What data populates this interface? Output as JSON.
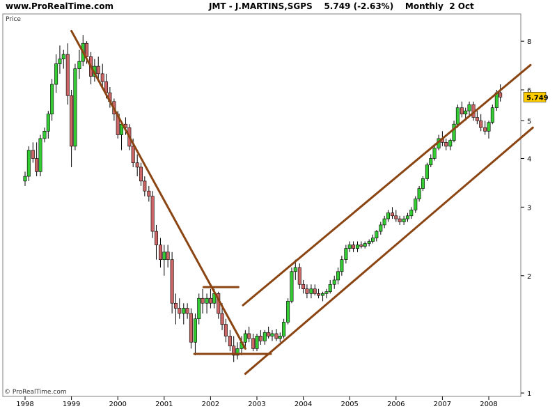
{
  "header": {
    "site": "www.ProRealTime.com",
    "symbol": "JMT - J.MARTINS,SGPS",
    "price": "5.749",
    "change": "(-2.63%)",
    "period": "Monthly",
    "date": "2 Oct"
  },
  "chart_data": {
    "type": "candlestick",
    "ylabel": "Price",
    "y_scale": "log",
    "ylim": [
      0.98,
      9.4
    ],
    "x_range": [
      1997.9,
      2008.95
    ],
    "x_ticks": [
      "1998",
      "1999",
      "2000",
      "2001",
      "2002",
      "2003",
      "2004",
      "2005",
      "2006",
      "2007",
      "2008"
    ],
    "y_ticks": [
      1,
      2,
      3,
      4,
      5,
      6,
      8
    ],
    "last_price_label": "5.749",
    "copyright": "© ProRealTime.com",
    "colors": {
      "up": "#33cc33",
      "down": "#cc6666",
      "trendline": "#8b4513",
      "last_label_bg": "#ffcc00"
    },
    "candles": [
      [
        1998.0,
        3.5,
        3.7,
        3.4,
        3.6
      ],
      [
        1998.08,
        3.6,
        4.3,
        3.5,
        4.2
      ],
      [
        1998.17,
        4.2,
        4.4,
        3.9,
        4.0
      ],
      [
        1998.25,
        4.0,
        4.4,
        3.6,
        3.7
      ],
      [
        1998.33,
        3.7,
        4.6,
        3.6,
        4.5
      ],
      [
        1998.42,
        4.5,
        4.8,
        4.4,
        4.7
      ],
      [
        1998.5,
        4.7,
        5.3,
        4.5,
        5.2
      ],
      [
        1998.58,
        5.2,
        6.4,
        5.0,
        6.2
      ],
      [
        1998.67,
        6.2,
        7.4,
        5.9,
        7.0
      ],
      [
        1998.75,
        7.0,
        7.8,
        6.6,
        7.2
      ],
      [
        1998.83,
        7.2,
        7.6,
        6.8,
        7.4
      ],
      [
        1998.92,
        7.4,
        7.9,
        5.5,
        5.8
      ],
      [
        1999.0,
        5.8,
        6.0,
        3.8,
        4.3
      ],
      [
        1999.08,
        4.3,
        7.0,
        4.2,
        6.8
      ],
      [
        1999.17,
        6.8,
        7.6,
        6.4,
        7.1
      ],
      [
        1999.25,
        7.1,
        8.3,
        6.9,
        7.9
      ],
      [
        1999.33,
        7.9,
        8.0,
        7.0,
        7.3
      ],
      [
        1999.42,
        7.3,
        7.5,
        6.2,
        6.5
      ],
      [
        1999.5,
        6.5,
        7.2,
        6.3,
        6.9
      ],
      [
        1999.58,
        6.9,
        7.3,
        6.4,
        6.6
      ],
      [
        1999.67,
        6.6,
        7.0,
        6.1,
        6.3
      ],
      [
        1999.75,
        6.3,
        6.6,
        5.7,
        5.9
      ],
      [
        1999.83,
        5.9,
        6.1,
        5.4,
        5.6
      ],
      [
        1999.92,
        5.6,
        5.7,
        5.0,
        5.2
      ],
      [
        2000.0,
        5.2,
        5.3,
        4.5,
        4.6
      ],
      [
        2000.08,
        4.6,
        5.0,
        4.2,
        4.9
      ],
      [
        2000.17,
        4.9,
        5.1,
        4.6,
        4.8
      ],
      [
        2000.25,
        4.8,
        4.9,
        4.2,
        4.3
      ],
      [
        2000.33,
        4.3,
        4.5,
        3.8,
        3.9
      ],
      [
        2000.42,
        3.9,
        4.1,
        3.6,
        3.8
      ],
      [
        2000.5,
        3.8,
        3.9,
        3.4,
        3.5
      ],
      [
        2000.58,
        3.5,
        3.6,
        3.2,
        3.3
      ],
      [
        2000.67,
        3.3,
        3.4,
        3.1,
        3.2
      ],
      [
        2000.75,
        3.2,
        3.3,
        2.5,
        2.6
      ],
      [
        2000.83,
        2.6,
        2.7,
        2.2,
        2.4
      ],
      [
        2000.92,
        2.4,
        2.5,
        2.1,
        2.2
      ],
      [
        2001.0,
        2.2,
        2.4,
        2.0,
        2.3
      ],
      [
        2001.08,
        2.3,
        2.4,
        2.1,
        2.2
      ],
      [
        2001.17,
        2.2,
        2.3,
        1.6,
        1.7
      ],
      [
        2001.25,
        1.7,
        1.8,
        1.5,
        1.65
      ],
      [
        2001.33,
        1.65,
        1.75,
        1.55,
        1.6
      ],
      [
        2001.42,
        1.6,
        1.7,
        1.5,
        1.65
      ],
      [
        2001.5,
        1.65,
        1.7,
        1.55,
        1.6
      ],
      [
        2001.58,
        1.6,
        1.65,
        1.3,
        1.35
      ],
      [
        2001.67,
        1.35,
        1.6,
        1.25,
        1.55
      ],
      [
        2001.75,
        1.55,
        1.8,
        1.5,
        1.75
      ],
      [
        2001.83,
        1.75,
        1.85,
        1.6,
        1.7
      ],
      [
        2001.92,
        1.7,
        1.8,
        1.6,
        1.75
      ],
      [
        2002.0,
        1.75,
        1.85,
        1.65,
        1.7
      ],
      [
        2002.08,
        1.7,
        1.85,
        1.65,
        1.8
      ],
      [
        2002.17,
        1.8,
        1.82,
        1.55,
        1.6
      ],
      [
        2002.25,
        1.6,
        1.7,
        1.45,
        1.5
      ],
      [
        2002.33,
        1.5,
        1.55,
        1.35,
        1.4
      ],
      [
        2002.42,
        1.4,
        1.45,
        1.28,
        1.32
      ],
      [
        2002.5,
        1.32,
        1.4,
        1.2,
        1.25
      ],
      [
        2002.58,
        1.25,
        1.35,
        1.22,
        1.3
      ],
      [
        2002.67,
        1.3,
        1.4,
        1.25,
        1.35
      ],
      [
        2002.75,
        1.35,
        1.45,
        1.3,
        1.42
      ],
      [
        2002.83,
        1.42,
        1.48,
        1.35,
        1.38
      ],
      [
        2002.92,
        1.38,
        1.42,
        1.28,
        1.3
      ],
      [
        2003.0,
        1.3,
        1.42,
        1.28,
        1.4
      ],
      [
        2003.08,
        1.4,
        1.45,
        1.33,
        1.36
      ],
      [
        2003.17,
        1.36,
        1.45,
        1.33,
        1.43
      ],
      [
        2003.25,
        1.43,
        1.48,
        1.38,
        1.4
      ],
      [
        2003.33,
        1.4,
        1.45,
        1.36,
        1.42
      ],
      [
        2003.42,
        1.42,
        1.46,
        1.36,
        1.38
      ],
      [
        2003.5,
        1.38,
        1.43,
        1.35,
        1.4
      ],
      [
        2003.58,
        1.4,
        1.55,
        1.38,
        1.52
      ],
      [
        2003.67,
        1.52,
        1.75,
        1.5,
        1.72
      ],
      [
        2003.75,
        1.72,
        2.1,
        1.7,
        2.05
      ],
      [
        2003.83,
        2.05,
        2.2,
        1.95,
        2.1
      ],
      [
        2003.92,
        2.1,
        2.15,
        1.85,
        1.9
      ],
      [
        2004.0,
        1.9,
        1.95,
        1.8,
        1.85
      ],
      [
        2004.08,
        1.85,
        1.9,
        1.75,
        1.8
      ],
      [
        2004.17,
        1.8,
        1.9,
        1.75,
        1.85
      ],
      [
        2004.25,
        1.85,
        1.9,
        1.78,
        1.8
      ],
      [
        2004.33,
        1.8,
        1.85,
        1.75,
        1.78
      ],
      [
        2004.42,
        1.78,
        1.82,
        1.72,
        1.8
      ],
      [
        2004.5,
        1.8,
        1.85,
        1.75,
        1.82
      ],
      [
        2004.58,
        1.82,
        1.95,
        1.8,
        1.9
      ],
      [
        2004.67,
        1.9,
        2.0,
        1.85,
        1.95
      ],
      [
        2004.75,
        1.95,
        2.1,
        1.9,
        2.05
      ],
      [
        2004.83,
        2.05,
        2.25,
        2.0,
        2.2
      ],
      [
        2004.92,
        2.2,
        2.4,
        2.15,
        2.35
      ],
      [
        2005.0,
        2.35,
        2.45,
        2.3,
        2.4
      ],
      [
        2005.08,
        2.4,
        2.45,
        2.3,
        2.35
      ],
      [
        2005.17,
        2.35,
        2.45,
        2.3,
        2.4
      ],
      [
        2005.25,
        2.4,
        2.45,
        2.35,
        2.38
      ],
      [
        2005.33,
        2.38,
        2.45,
        2.35,
        2.42
      ],
      [
        2005.42,
        2.42,
        2.48,
        2.38,
        2.45
      ],
      [
        2005.5,
        2.45,
        2.55,
        2.42,
        2.5
      ],
      [
        2005.58,
        2.5,
        2.62,
        2.45,
        2.6
      ],
      [
        2005.67,
        2.6,
        2.75,
        2.55,
        2.7
      ],
      [
        2005.75,
        2.7,
        2.85,
        2.65,
        2.8
      ],
      [
        2005.83,
        2.8,
        2.95,
        2.75,
        2.9
      ],
      [
        2005.92,
        2.9,
        3.0,
        2.8,
        2.85
      ],
      [
        2006.0,
        2.85,
        2.95,
        2.75,
        2.8
      ],
      [
        2006.08,
        2.8,
        2.85,
        2.7,
        2.75
      ],
      [
        2006.17,
        2.75,
        2.85,
        2.7,
        2.8
      ],
      [
        2006.25,
        2.8,
        2.9,
        2.75,
        2.85
      ],
      [
        2006.33,
        2.85,
        3.0,
        2.8,
        2.95
      ],
      [
        2006.42,
        2.95,
        3.2,
        2.9,
        3.15
      ],
      [
        2006.5,
        3.15,
        3.4,
        3.1,
        3.35
      ],
      [
        2006.58,
        3.35,
        3.6,
        3.3,
        3.55
      ],
      [
        2006.67,
        3.55,
        3.9,
        3.5,
        3.85
      ],
      [
        2006.75,
        3.85,
        4.1,
        3.8,
        4.0
      ],
      [
        2006.83,
        4.0,
        4.3,
        3.95,
        4.25
      ],
      [
        2006.92,
        4.25,
        4.6,
        4.2,
        4.5
      ],
      [
        2007.0,
        4.5,
        4.7,
        4.3,
        4.4
      ],
      [
        2007.08,
        4.4,
        4.5,
        4.2,
        4.3
      ],
      [
        2007.17,
        4.3,
        4.5,
        4.2,
        4.45
      ],
      [
        2007.25,
        4.45,
        5.0,
        4.4,
        4.9
      ],
      [
        2007.33,
        4.9,
        5.5,
        4.8,
        5.4
      ],
      [
        2007.42,
        5.4,
        5.6,
        5.1,
        5.2
      ],
      [
        2007.5,
        5.2,
        5.4,
        5.0,
        5.3
      ],
      [
        2007.58,
        5.3,
        5.6,
        5.1,
        5.5
      ],
      [
        2007.67,
        5.5,
        5.6,
        5.0,
        5.1
      ],
      [
        2007.75,
        5.1,
        5.3,
        4.9,
        5.0
      ],
      [
        2007.83,
        5.0,
        5.2,
        4.7,
        4.8
      ],
      [
        2007.92,
        4.8,
        5.0,
        4.6,
        4.7
      ],
      [
        2008.0,
        4.7,
        5.0,
        4.5,
        4.95
      ],
      [
        2008.08,
        4.95,
        5.5,
        4.9,
        5.4
      ],
      [
        2008.17,
        5.4,
        6.0,
        5.3,
        5.9
      ],
      [
        2008.25,
        5.9,
        6.2,
        5.6,
        5.749
      ]
    ]
  }
}
